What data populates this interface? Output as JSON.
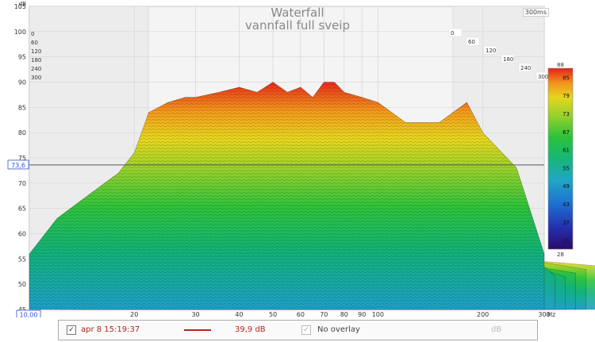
{
  "chart_data": {
    "type": "area",
    "title": "Waterfall",
    "subtitle": "vannfall full sveip",
    "time_range_label": "300ms",
    "ylabel": "dB",
    "xlabel": "Hz",
    "y_ticks": [
      "105",
      "100",
      "95",
      "90",
      "85",
      "80",
      "75",
      "70",
      "65",
      "60",
      "55",
      "50",
      "45"
    ],
    "x_ticks": [
      "20",
      "30",
      "40",
      "50",
      "60",
      "70",
      "80",
      "90",
      "100",
      "200",
      "300"
    ],
    "x_start_label": "10,00",
    "y_marker_label": "73,6",
    "y_marker_value": 73.6,
    "xlim": [
      10,
      300
    ],
    "ylim": [
      45,
      105
    ],
    "log_x": true,
    "time_labels_left": [
      "0",
      "60",
      "120",
      "180",
      "240",
      "300"
    ],
    "time_labels_right": [
      "0",
      "60",
      "120",
      "180",
      "240",
      "300"
    ],
    "color_scale": {
      "ticks": [
        "88",
        "85",
        "79",
        "73",
        "67",
        "61",
        "55",
        "49",
        "43",
        "37",
        "31",
        "28"
      ],
      "min": 28,
      "max": 88
    },
    "series": [
      {
        "name": "0",
        "x": [
          10,
          12,
          15,
          18,
          20,
          22,
          25,
          28,
          30,
          35,
          40,
          45,
          50,
          55,
          60,
          65,
          70,
          75,
          80,
          90,
          100,
          120,
          150,
          180,
          200,
          250,
          300
        ],
        "values": [
          56,
          63,
          68,
          72,
          76,
          84,
          86,
          87,
          87,
          88,
          89,
          88,
          90,
          88,
          89,
          87,
          90,
          90,
          88,
          87,
          86,
          82,
          82,
          86,
          80,
          73,
          56
        ]
      },
      {
        "name": "60",
        "x": [
          10,
          20,
          30,
          50,
          70,
          100,
          150,
          200,
          300
        ],
        "values": [
          52,
          66,
          72,
          74,
          73,
          70,
          66,
          60,
          50
        ]
      },
      {
        "name": "120",
        "x": [
          10,
          20,
          30,
          50,
          70,
          100,
          150,
          200,
          300
        ],
        "values": [
          50,
          60,
          63,
          64,
          62,
          58,
          55,
          52,
          48
        ]
      },
      {
        "name": "180",
        "x": [
          10,
          20,
          30,
          50,
          70,
          100,
          150,
          200,
          300
        ],
        "values": [
          48,
          54,
          56,
          57,
          56,
          53,
          51,
          49,
          47
        ]
      },
      {
        "name": "240",
        "x": [
          10,
          20,
          30,
          50,
          70,
          100,
          150,
          200,
          300
        ],
        "values": [
          47,
          51,
          52,
          52,
          51,
          50,
          49,
          48,
          46
        ]
      },
      {
        "name": "300",
        "x": [
          10,
          20,
          30,
          50,
          70,
          100,
          150,
          200,
          300
        ],
        "values": [
          46,
          49,
          49,
          49,
          48,
          48,
          47,
          46,
          45
        ]
      }
    ],
    "grid": true
  },
  "legend": {
    "entry_date": "apr 8 15:19:37",
    "entry_level": "39,9 dB",
    "entry_color": "#b3261e",
    "overlay_label": "No overlay",
    "unit_label": "dB",
    "check_mark": "✓"
  }
}
